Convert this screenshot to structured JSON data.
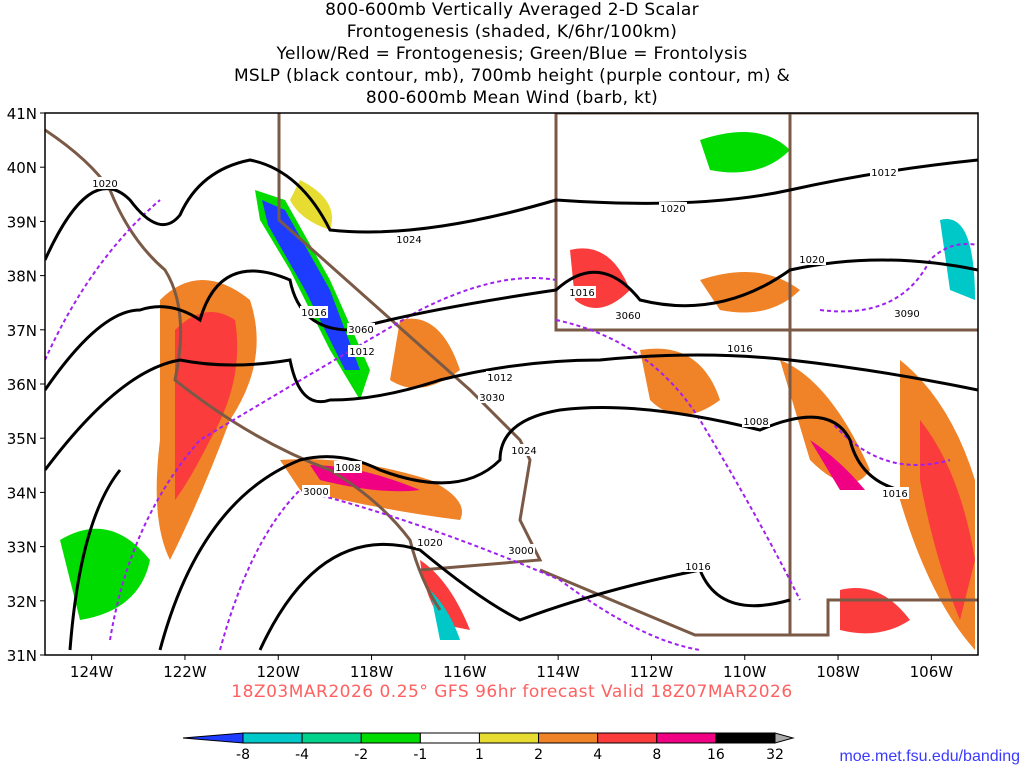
{
  "title_lines": [
    "800-600mb Vertically Averaged 2-D Scalar",
    "Frontogenesis (shaded, K/6hr/100km)",
    "Yellow/Red = Frontogenesis;  Green/Blue = Frontolysis",
    "MSLP (black contour, mb), 700mb height (purple contour, m) &",
    "800-600mb Mean Wind (barb, kt)"
  ],
  "subtitle": "18Z03MAR2026 0.25° GFS 96hr forecast Valid 18Z07MAR2026",
  "credit": "moe.met.fsu.edu/banding",
  "map": {
    "lon_range": [
      -125,
      -105
    ],
    "lat_range": [
      31,
      41
    ],
    "lat_labels": [
      "41N",
      "40N",
      "39N",
      "38N",
      "37N",
      "36N",
      "35N",
      "34N",
      "33N",
      "32N",
      "31N"
    ],
    "lon_labels": [
      "124W",
      "122W",
      "120W",
      "118W",
      "116W",
      "114W",
      "112W",
      "110W",
      "108W",
      "106W"
    ],
    "mslp_labels": [
      "1020",
      "1024",
      "1020",
      "1016",
      "1016",
      "1020",
      "1016",
      "1012",
      "1012",
      "1008",
      "1008",
      "1024",
      "1020",
      "1016",
      "1012",
      "1016"
    ],
    "height_labels": [
      "3060",
      "3030",
      "3000",
      "3000",
      "3060",
      "3090"
    ]
  },
  "colorbar": {
    "ticks": [
      "-8",
      "-4",
      "-2",
      "-1",
      "1",
      "2",
      "4",
      "8",
      "16",
      "32"
    ],
    "colors": [
      "#1e3cff",
      "#00c8c8",
      "#00d28c",
      "#00dc00",
      "#ffffff",
      "#e6dc32",
      "#f08228",
      "#fa3c3c",
      "#f00082",
      "#000000",
      "#aaaaaa"
    ]
  }
}
